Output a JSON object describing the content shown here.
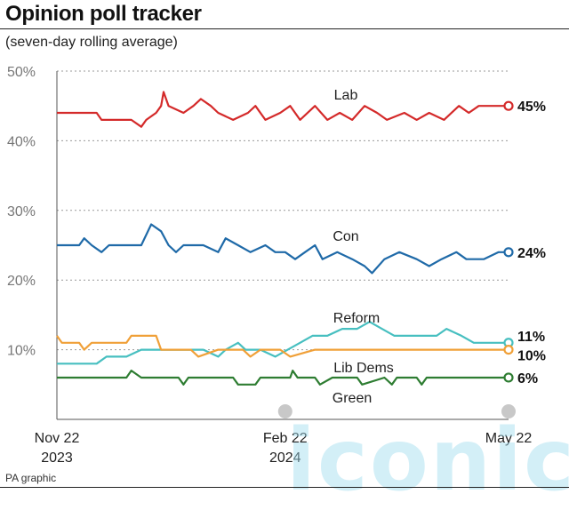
{
  "header": {
    "title": "Opinion poll tracker",
    "subtitle": "(seven-day rolling average)",
    "credit": "PA graphic",
    "watermark": "iconic"
  },
  "chart_data": {
    "type": "line",
    "title": "Opinion poll tracker",
    "subtitle": "(seven-day rolling average)",
    "xlabel": "",
    "ylabel": "",
    "ylim": [
      0,
      50
    ],
    "yticks": [
      10,
      20,
      30,
      40,
      50
    ],
    "ytick_labels": [
      "10%",
      "20%",
      "30%",
      "40%",
      "50%"
    ],
    "xlim": [
      "2023-11-22",
      "2024-05-22"
    ],
    "xticks": [
      {
        "date": "2023-11-22",
        "label": [
          "Nov 22",
          "2023"
        ]
      },
      {
        "date": "2024-02-22",
        "label": [
          "Feb 22",
          "2024"
        ]
      },
      {
        "date": "2024-05-22",
        "label": [
          "May 22",
          ""
        ]
      }
    ],
    "grid": true,
    "series": [
      {
        "name": "Lab",
        "color": "#d42a2a",
        "final_label": "45%",
        "points": [
          [
            "2023-11-22",
            44
          ],
          [
            "2023-12-08",
            44
          ],
          [
            "2023-12-10",
            43
          ],
          [
            "2023-12-22",
            43
          ],
          [
            "2023-12-26",
            42
          ],
          [
            "2023-12-28",
            43
          ],
          [
            "2024-01-01",
            44
          ],
          [
            "2024-01-03",
            45
          ],
          [
            "2024-01-04",
            47
          ],
          [
            "2024-01-06",
            45
          ],
          [
            "2024-01-12",
            44
          ],
          [
            "2024-01-16",
            45
          ],
          [
            "2024-01-19",
            46
          ],
          [
            "2024-01-23",
            45
          ],
          [
            "2024-01-26",
            44
          ],
          [
            "2024-02-01",
            43
          ],
          [
            "2024-02-07",
            44
          ],
          [
            "2024-02-10",
            45
          ],
          [
            "2024-02-14",
            43
          ],
          [
            "2024-02-20",
            44
          ],
          [
            "2024-02-24",
            45
          ],
          [
            "2024-02-28",
            43
          ],
          [
            "2024-03-05",
            45
          ],
          [
            "2024-03-10",
            43
          ],
          [
            "2024-03-15",
            44
          ],
          [
            "2024-03-20",
            43
          ],
          [
            "2024-03-25",
            45
          ],
          [
            "2024-03-30",
            44
          ],
          [
            "2024-04-03",
            43
          ],
          [
            "2024-04-10",
            44
          ],
          [
            "2024-04-15",
            43
          ],
          [
            "2024-04-20",
            44
          ],
          [
            "2024-04-26",
            43
          ],
          [
            "2024-05-02",
            45
          ],
          [
            "2024-05-06",
            44
          ],
          [
            "2024-05-10",
            45
          ],
          [
            "2024-05-15",
            45
          ],
          [
            "2024-05-22",
            45
          ]
        ]
      },
      {
        "name": "Con",
        "color": "#1f6aa8",
        "final_label": "24%",
        "points": [
          [
            "2023-11-22",
            25
          ],
          [
            "2023-12-01",
            25
          ],
          [
            "2023-12-03",
            26
          ],
          [
            "2023-12-06",
            25
          ],
          [
            "2023-12-10",
            24
          ],
          [
            "2023-12-13",
            25
          ],
          [
            "2023-12-20",
            25
          ],
          [
            "2023-12-26",
            25
          ],
          [
            "2023-12-30",
            28
          ],
          [
            "2024-01-03",
            27
          ],
          [
            "2024-01-06",
            25
          ],
          [
            "2024-01-09",
            24
          ],
          [
            "2024-01-12",
            25
          ],
          [
            "2024-01-20",
            25
          ],
          [
            "2024-01-26",
            24
          ],
          [
            "2024-01-29",
            26
          ],
          [
            "2024-02-03",
            25
          ],
          [
            "2024-02-08",
            24
          ],
          [
            "2024-02-14",
            25
          ],
          [
            "2024-02-18",
            24
          ],
          [
            "2024-02-22",
            24
          ],
          [
            "2024-02-26",
            23
          ],
          [
            "2024-03-01",
            24
          ],
          [
            "2024-03-05",
            25
          ],
          [
            "2024-03-08",
            23
          ],
          [
            "2024-03-14",
            24
          ],
          [
            "2024-03-20",
            23
          ],
          [
            "2024-03-25",
            22
          ],
          [
            "2024-03-28",
            21
          ],
          [
            "2024-04-02",
            23
          ],
          [
            "2024-04-08",
            24
          ],
          [
            "2024-04-15",
            23
          ],
          [
            "2024-04-20",
            22
          ],
          [
            "2024-04-25",
            23
          ],
          [
            "2024-05-01",
            24
          ],
          [
            "2024-05-05",
            23
          ],
          [
            "2024-05-12",
            23
          ],
          [
            "2024-05-18",
            24
          ],
          [
            "2024-05-22",
            24
          ]
        ]
      },
      {
        "name": "Reform",
        "color": "#47bfc0",
        "final_label": "11%",
        "points": [
          [
            "2023-11-22",
            8
          ],
          [
            "2023-12-08",
            8
          ],
          [
            "2023-12-12",
            9
          ],
          [
            "2023-12-20",
            9
          ],
          [
            "2023-12-26",
            10
          ],
          [
            "2024-01-10",
            10
          ],
          [
            "2024-01-20",
            10
          ],
          [
            "2024-01-26",
            9
          ],
          [
            "2024-01-29",
            10
          ],
          [
            "2024-02-03",
            11
          ],
          [
            "2024-02-06",
            10
          ],
          [
            "2024-02-12",
            10
          ],
          [
            "2024-02-18",
            9
          ],
          [
            "2024-02-23",
            10
          ],
          [
            "2024-02-28",
            11
          ],
          [
            "2024-03-04",
            12
          ],
          [
            "2024-03-10",
            12
          ],
          [
            "2024-03-16",
            13
          ],
          [
            "2024-03-22",
            13
          ],
          [
            "2024-03-27",
            14
          ],
          [
            "2024-04-01",
            13
          ],
          [
            "2024-04-06",
            12
          ],
          [
            "2024-04-15",
            12
          ],
          [
            "2024-04-23",
            12
          ],
          [
            "2024-04-27",
            13
          ],
          [
            "2024-05-03",
            12
          ],
          [
            "2024-05-08",
            11
          ],
          [
            "2024-05-15",
            11
          ],
          [
            "2024-05-22",
            11
          ]
        ]
      },
      {
        "name": "Lib Dems",
        "color": "#f0a038",
        "final_label": "10%",
        "points": [
          [
            "2023-11-22",
            12
          ],
          [
            "2023-11-24",
            11
          ],
          [
            "2023-12-01",
            11
          ],
          [
            "2023-12-03",
            10
          ],
          [
            "2023-12-06",
            11
          ],
          [
            "2023-12-20",
            11
          ],
          [
            "2023-12-22",
            12
          ],
          [
            "2024-01-01",
            12
          ],
          [
            "2024-01-03",
            10
          ],
          [
            "2024-01-15",
            10
          ],
          [
            "2024-01-18",
            9
          ],
          [
            "2024-01-26",
            10
          ],
          [
            "2024-02-05",
            10
          ],
          [
            "2024-02-08",
            9
          ],
          [
            "2024-02-12",
            10
          ],
          [
            "2024-02-20",
            10
          ],
          [
            "2024-02-24",
            9
          ],
          [
            "2024-03-05",
            10
          ],
          [
            "2024-03-15",
            10
          ],
          [
            "2024-03-25",
            10
          ],
          [
            "2024-04-05",
            10
          ],
          [
            "2024-04-15",
            10
          ],
          [
            "2024-04-25",
            10
          ],
          [
            "2024-05-05",
            10
          ],
          [
            "2024-05-15",
            10
          ],
          [
            "2024-05-22",
            10
          ]
        ]
      },
      {
        "name": "Green",
        "color": "#2e7d32",
        "final_label": "6%",
        "points": [
          [
            "2023-11-22",
            6
          ],
          [
            "2023-12-20",
            6
          ],
          [
            "2023-12-22",
            7
          ],
          [
            "2023-12-26",
            6
          ],
          [
            "2024-01-10",
            6
          ],
          [
            "2024-01-12",
            5
          ],
          [
            "2024-01-14",
            6
          ],
          [
            "2024-02-01",
            6
          ],
          [
            "2024-02-03",
            5
          ],
          [
            "2024-02-10",
            5
          ],
          [
            "2024-02-12",
            6
          ],
          [
            "2024-02-24",
            6
          ],
          [
            "2024-02-25",
            7
          ],
          [
            "2024-02-27",
            6
          ],
          [
            "2024-03-05",
            6
          ],
          [
            "2024-03-07",
            5
          ],
          [
            "2024-03-12",
            6
          ],
          [
            "2024-03-22",
            6
          ],
          [
            "2024-03-24",
            5
          ],
          [
            "2024-04-02",
            6
          ],
          [
            "2024-04-05",
            5
          ],
          [
            "2024-04-07",
            6
          ],
          [
            "2024-04-15",
            6
          ],
          [
            "2024-04-17",
            5
          ],
          [
            "2024-04-19",
            6
          ],
          [
            "2024-05-22",
            6
          ]
        ]
      }
    ]
  }
}
